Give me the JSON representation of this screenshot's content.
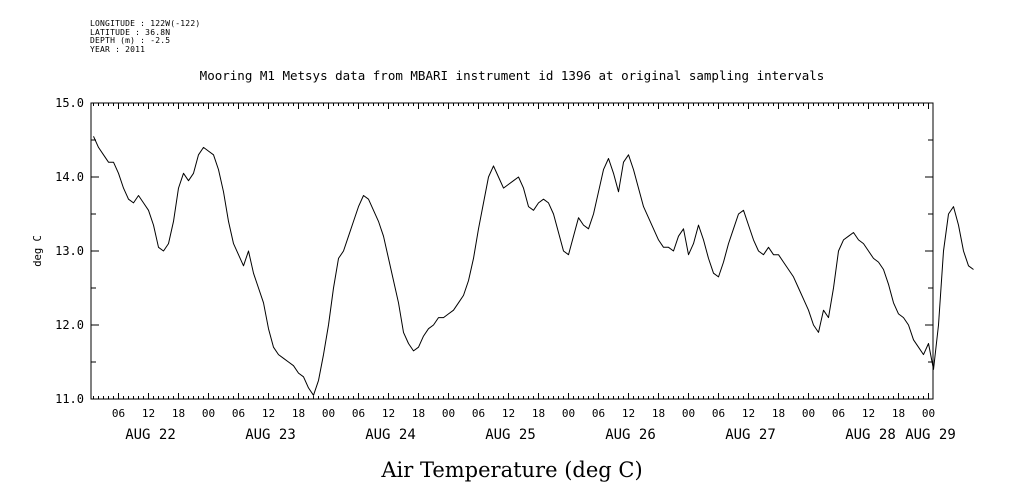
{
  "header": {
    "meta": [
      "LONGITUDE : 122W(-122)",
      "LATITUDE : 36.8N",
      "DEPTH (m) : -2.5",
      "YEAR : 2011"
    ]
  },
  "chart_data": {
    "type": "line",
    "title": "Mooring M1 Metsys data from MBARI instrument id 1396 at original sampling intervals",
    "ylabel": "deg C",
    "footer_label": "Air Temperature (deg C)",
    "ylim": [
      11.0,
      15.0
    ],
    "yticks": [
      "11.0",
      "12.0",
      "13.0",
      "14.0",
      "15.0"
    ],
    "xlim_hours": [
      0.5,
      168.9
    ],
    "xticks_hours": [
      "06",
      "12",
      "18",
      "00",
      "06",
      "12",
      "18",
      "00",
      "06",
      "12",
      "18",
      "00",
      "06",
      "12",
      "18",
      "00",
      "06",
      "12",
      "18",
      "00",
      "06",
      "12",
      "18",
      "00",
      "06",
      "12",
      "18",
      "00"
    ],
    "day_labels": [
      "AUG 22",
      "AUG 23",
      "AUG 24",
      "AUG 25",
      "AUG 26",
      "AUG 27",
      "AUG 28",
      "AUG 29"
    ],
    "series": [
      {
        "x_start_hour": 1.0,
        "x_step_hour": 1.0,
        "values": [
          14.55,
          14.4,
          14.3,
          14.2,
          14.2,
          14.05,
          13.85,
          13.7,
          13.65,
          13.75,
          13.65,
          13.55,
          13.35,
          13.05,
          13.0,
          13.1,
          13.4,
          13.85,
          14.05,
          13.95,
          14.05,
          14.3,
          14.4,
          14.35,
          14.3,
          14.1,
          13.8,
          13.4,
          13.1,
          12.95,
          12.8,
          13.0,
          12.7,
          12.5,
          12.3,
          11.95,
          11.7,
          11.6,
          11.55,
          11.5,
          11.45,
          11.35,
          11.3,
          11.15,
          11.05,
          11.25,
          11.6,
          12.0,
          12.5,
          12.9,
          13.0,
          13.2,
          13.4,
          13.6,
          13.75,
          13.7,
          13.55,
          13.4,
          13.2,
          12.9,
          12.6,
          12.3,
          11.9,
          11.75,
          11.65,
          11.7,
          11.85,
          11.95,
          12.0,
          12.1,
          12.1,
          12.15,
          12.2,
          12.3,
          12.4,
          12.6,
          12.9,
          13.3,
          13.65,
          14.0,
          14.15,
          14.0,
          13.85,
          13.9,
          13.95,
          14.0,
          13.85,
          13.6,
          13.55,
          13.65,
          13.7,
          13.65,
          13.5,
          13.25,
          13.0,
          12.95,
          13.2,
          13.45,
          13.35,
          13.3,
          13.5,
          13.8,
          14.1,
          14.25,
          14.05,
          13.8,
          14.2,
          14.3,
          14.1,
          13.85,
          13.6,
          13.45,
          13.3,
          13.15,
          13.05,
          13.05,
          13.0,
          13.2,
          13.3,
          12.95,
          13.1,
          13.35,
          13.15,
          12.9,
          12.7,
          12.65,
          12.85,
          13.1,
          13.3,
          13.5,
          13.55,
          13.35,
          13.15,
          13.0,
          12.95,
          13.05,
          12.95,
          12.95,
          12.85,
          12.75,
          12.65,
          12.5,
          12.35,
          12.2,
          12.0,
          11.9,
          12.2,
          12.1,
          12.5,
          13.0,
          13.15,
          13.2,
          13.25,
          13.15,
          13.1,
          13.0,
          12.9,
          12.85,
          12.75,
          12.55,
          12.3,
          12.15,
          12.1,
          12.0,
          11.8,
          11.7,
          11.6,
          11.75,
          11.4,
          12.0,
          13.0,
          13.5,
          13.6,
          13.35,
          13.0,
          12.8,
          12.75
        ]
      }
    ],
    "colors": {
      "line": "#000000",
      "axis": "#000000",
      "background": "#ffffff"
    }
  }
}
